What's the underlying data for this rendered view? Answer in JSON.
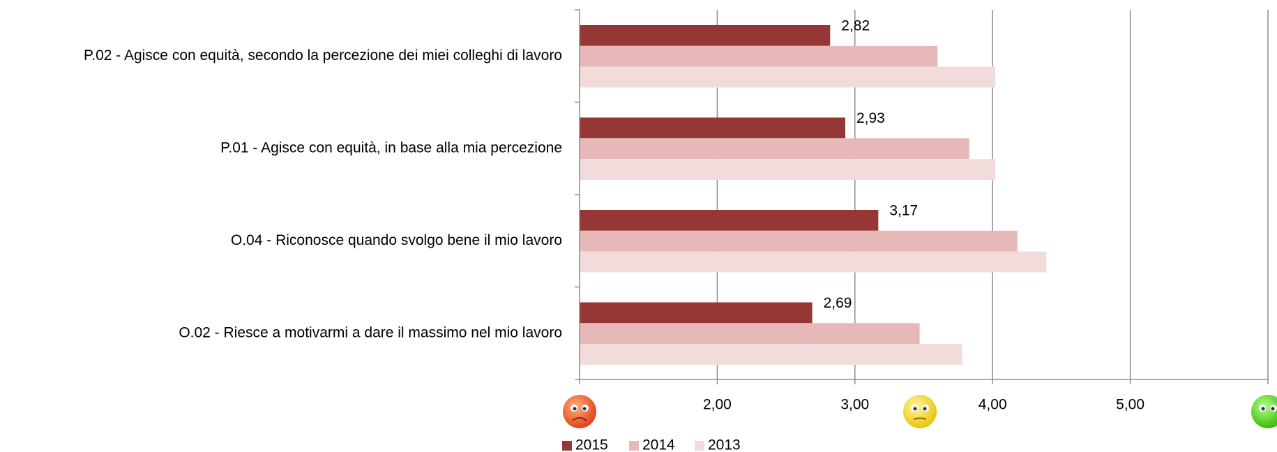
{
  "chart_data": {
    "type": "bar",
    "orientation": "horizontal",
    "categories": [
      "P.02 - Agisce con equità, secondo la percezione dei miei colleghi di lavoro",
      "P.01 - Agisce con equità, in base alla mia percezione",
      "O.04 - Riconosce quando svolgo bene il mio lavoro",
      "O.02 - Riesce a motivarmi a dare il massimo nel mio lavoro"
    ],
    "series": [
      {
        "name": "2015",
        "color": "#953735",
        "values": [
          2.82,
          2.93,
          3.17,
          2.69
        ],
        "value_labels": [
          "2,82",
          "2,93",
          "3,17",
          "2,69"
        ]
      },
      {
        "name": "2014",
        "color": "#e6b9b8",
        "values": [
          3.6,
          3.83,
          4.18,
          3.47
        ]
      },
      {
        "name": "2013",
        "color": "#f2dcdb",
        "values": [
          4.02,
          4.02,
          4.39,
          3.78
        ]
      }
    ],
    "xlim": [
      1,
      6
    ],
    "xticks": [
      {
        "value": 2,
        "label": "2,00"
      },
      {
        "value": 3,
        "label": "3,00"
      },
      {
        "value": 4,
        "label": "4,00"
      },
      {
        "value": 5,
        "label": "5,00"
      }
    ],
    "grid": true,
    "legend": "bottom"
  }
}
